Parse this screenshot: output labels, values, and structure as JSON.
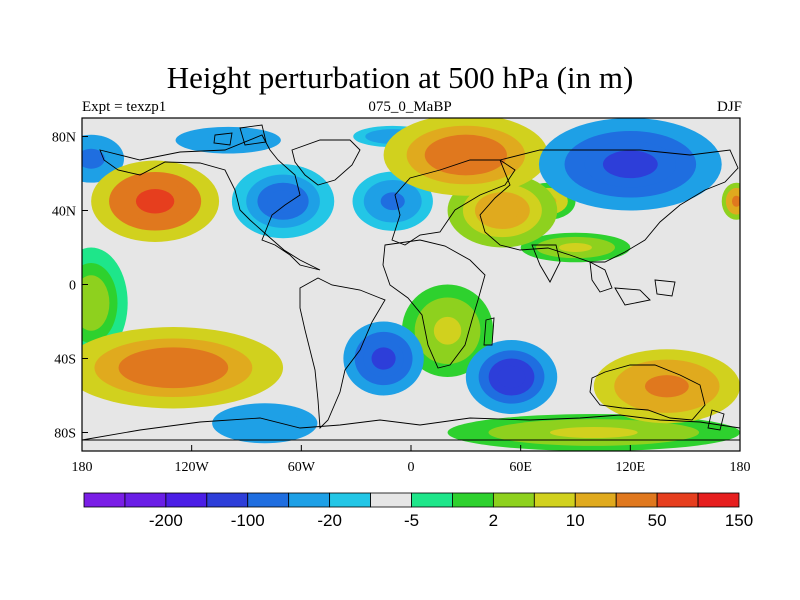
{
  "title": "Height perturbation at 500 hPa (in m)",
  "subtitle_left": "Expt = texzp1",
  "subtitle_center": "075_0_MaBP",
  "subtitle_right": "DJF",
  "chart_data": {
    "type": "heatmap",
    "variable": "500 hPa geopotential height perturbation",
    "units": "m",
    "xlim": [
      -180,
      180
    ],
    "ylim": [
      -90,
      90
    ],
    "x_ticks": [
      {
        "value": -180,
        "label": "180"
      },
      {
        "value": -120,
        "label": "120W"
      },
      {
        "value": -60,
        "label": "60W"
      },
      {
        "value": 0,
        "label": "0"
      },
      {
        "value": 60,
        "label": "60E"
      },
      {
        "value": 120,
        "label": "120E"
      },
      {
        "value": 180,
        "label": "180"
      }
    ],
    "y_ticks": [
      {
        "value": 80,
        "label": "80N"
      },
      {
        "value": 40,
        "label": "40N"
      },
      {
        "value": 0,
        "label": "0"
      },
      {
        "value": -40,
        "label": "40S"
      },
      {
        "value": -80,
        "label": "80S"
      }
    ],
    "colorbar": {
      "colors": [
        "#7a1ee6",
        "#6a1ee6",
        "#4b1ee6",
        "#2d3ed9",
        "#1f6ee0",
        "#1ea0e6",
        "#23c6e6",
        "#e6e6e6",
        "#1ee68a",
        "#2ed12e",
        "#8ed11e",
        "#d1d11e",
        "#e0aa1e",
        "#e0781e",
        "#e63e1e",
        "#e61e1e"
      ],
      "labels": [
        {
          "after_index": 1,
          "text": "-200"
        },
        {
          "after_index": 3,
          "text": "-100"
        },
        {
          "after_index": 5,
          "text": "-20"
        },
        {
          "after_index": 7,
          "text": "-5"
        },
        {
          "after_index": 9,
          "text": "2"
        },
        {
          "after_index": 11,
          "text": "10"
        },
        {
          "after_index": 13,
          "text": "50"
        },
        {
          "after_index": 15,
          "text": "150"
        }
      ]
    },
    "features": [
      {
        "lon": -140,
        "lat": 45,
        "value": 130,
        "rx": 35,
        "ry": 22,
        "desc": "high N Pacific"
      },
      {
        "lon": -70,
        "lat": 45,
        "value": -110,
        "rx": 28,
        "ry": 20,
        "desc": "low N America"
      },
      {
        "lon": -175,
        "lat": 68,
        "value": -60,
        "rx": 25,
        "ry": 18,
        "desc": "low Bering"
      },
      {
        "lon": -100,
        "lat": 78,
        "value": -50,
        "rx": 40,
        "ry": 10,
        "desc": "low Canadian Arctic"
      },
      {
        "lon": -10,
        "lat": 45,
        "value": -70,
        "rx": 22,
        "ry": 16,
        "desc": "low N Atlantic"
      },
      {
        "lon": -10,
        "lat": 80,
        "value": -40,
        "rx": 30,
        "ry": 8,
        "desc": "low Greenland"
      },
      {
        "lon": 30,
        "lat": 70,
        "value": 90,
        "rx": 45,
        "ry": 22,
        "desc": "high Eurasia"
      },
      {
        "lon": 50,
        "lat": 40,
        "value": 40,
        "rx": 30,
        "ry": 20,
        "desc": "high Middle East"
      },
      {
        "lon": 120,
        "lat": 65,
        "value": -150,
        "rx": 50,
        "ry": 25,
        "desc": "low Siberia"
      },
      {
        "lon": 75,
        "lat": 45,
        "value": 30,
        "rx": 15,
        "ry": 10,
        "desc": "high Central Asia"
      },
      {
        "lon": 178,
        "lat": 45,
        "value": 60,
        "rx": 8,
        "ry": 10,
        "desc": "high dateline"
      },
      {
        "lon": 90,
        "lat": 20,
        "value": 15,
        "rx": 30,
        "ry": 8,
        "desc": "high Bay of Bengal"
      },
      {
        "lon": -130,
        "lat": -45,
        "value": 90,
        "rx": 60,
        "ry": 22,
        "desc": "high S Pacific"
      },
      {
        "lon": -175,
        "lat": -10,
        "value": 8,
        "rx": 20,
        "ry": 30,
        "desc": "tropical W Pacific"
      },
      {
        "lon": -15,
        "lat": -40,
        "value": -150,
        "rx": 22,
        "ry": 20,
        "desc": "low S Atlantic"
      },
      {
        "lon": 55,
        "lat": -50,
        "value": -170,
        "rx": 25,
        "ry": 20,
        "desc": "low S Indian"
      },
      {
        "lon": 140,
        "lat": -55,
        "value": 70,
        "rx": 40,
        "ry": 20,
        "desc": "high S Australia"
      },
      {
        "lon": -80,
        "lat": -75,
        "value": -50,
        "rx": 40,
        "ry": 15,
        "desc": "low Amundsen"
      },
      {
        "lon": 100,
        "lat": -80,
        "value": 15,
        "rx": 80,
        "ry": 10,
        "desc": "high Antarctica"
      },
      {
        "lon": 20,
        "lat": -25,
        "value": 15,
        "rx": 25,
        "ry": 25,
        "desc": "high S Africa"
      }
    ]
  }
}
